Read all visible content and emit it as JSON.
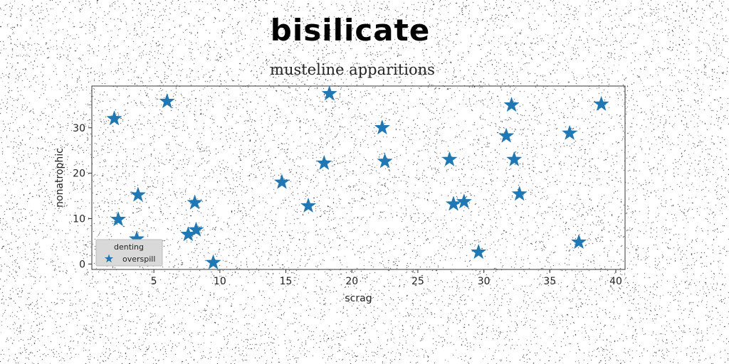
{
  "chart_data": {
    "type": "scatter",
    "title": "bisilicate",
    "subtitle": "musteline apparitions",
    "xlabel": "scrag",
    "ylabel": "nonatrophic",
    "xlim": [
      0.3,
      40.7
    ],
    "ylim": [
      -1.2,
      39.2
    ],
    "xticks": [
      5,
      10,
      15,
      20,
      25,
      30,
      35,
      40
    ],
    "yticks": [
      0,
      10,
      20,
      30
    ],
    "grid": false,
    "legend": {
      "title": "denting",
      "placement": "lower-left"
    },
    "marker": "star",
    "series": [
      {
        "name": "overspill",
        "color": "#1f77b4",
        "points": [
          [
            2.0,
            32.0
          ],
          [
            2.3,
            9.8
          ],
          [
            3.7,
            5.5
          ],
          [
            3.8,
            15.2
          ],
          [
            6.0,
            35.8
          ],
          [
            7.6,
            6.5
          ],
          [
            8.1,
            13.5
          ],
          [
            8.2,
            7.5
          ],
          [
            9.5,
            0.3
          ],
          [
            14.7,
            18.0
          ],
          [
            16.7,
            12.8
          ],
          [
            17.9,
            22.2
          ],
          [
            18.3,
            37.5
          ],
          [
            22.3,
            30.0
          ],
          [
            22.5,
            22.6
          ],
          [
            27.4,
            23.0
          ],
          [
            27.7,
            13.2
          ],
          [
            28.5,
            13.7
          ],
          [
            29.6,
            2.6
          ],
          [
            31.7,
            28.2
          ],
          [
            32.1,
            35.0
          ],
          [
            32.3,
            23.0
          ],
          [
            32.7,
            15.4
          ],
          [
            36.5,
            28.8
          ],
          [
            37.2,
            4.8
          ],
          [
            38.9,
            35.2
          ]
        ]
      }
    ]
  }
}
